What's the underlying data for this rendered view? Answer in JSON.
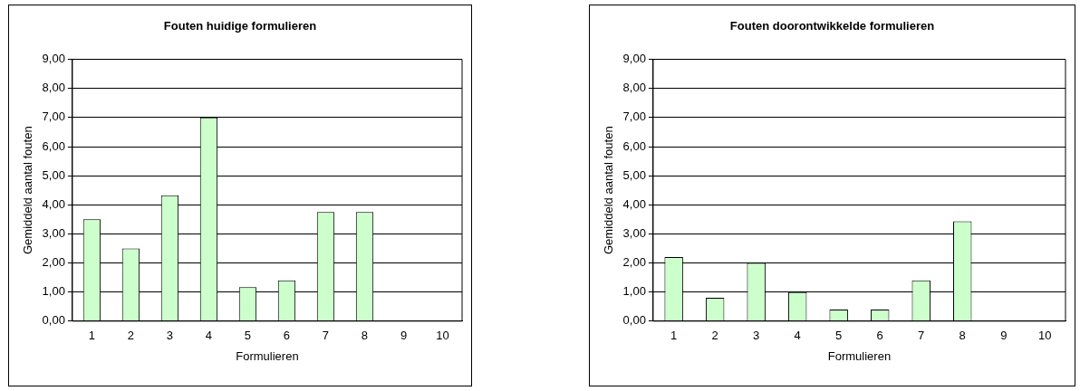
{
  "chart_data": [
    {
      "type": "bar",
      "title": "Fouten huidige formulieren",
      "xlabel": "Formulieren",
      "ylabel": "Gemiddeld aantal fouten",
      "categories": [
        "1",
        "2",
        "3",
        "4",
        "5",
        "6",
        "7",
        "8",
        "9",
        "10"
      ],
      "values": [
        3.5,
        2.5,
        4.33,
        7.0,
        1.17,
        1.4,
        3.75,
        3.75,
        null,
        null
      ],
      "color": "#ccffcc",
      "ylim": [
        0,
        9
      ],
      "yticks": [
        {
          "value": 0,
          "label": "0,00"
        },
        {
          "value": 1,
          "label": "1,00"
        },
        {
          "value": 2,
          "label": "2,00"
        },
        {
          "value": 3,
          "label": "3,00"
        },
        {
          "value": 4,
          "label": "4,00"
        },
        {
          "value": 5,
          "label": "5,00"
        },
        {
          "value": 6,
          "label": "6,00"
        },
        {
          "value": 7,
          "label": "7,00"
        },
        {
          "value": 8,
          "label": "8,00"
        },
        {
          "value": 9,
          "label": "9,00"
        }
      ],
      "grid": "y",
      "legend": false
    },
    {
      "type": "bar",
      "title": "Fouten doorontwikkelde formulieren",
      "xlabel": "Formulieren",
      "ylabel": "Gemiddeld aantal fouten",
      "categories": [
        "1",
        "2",
        "3",
        "4",
        "5",
        "6",
        "7",
        "8",
        "9",
        "10"
      ],
      "values": [
        2.2,
        0.8,
        2.0,
        1.0,
        0.4,
        0.4,
        1.4,
        3.43,
        null,
        null
      ],
      "color": "#ccffcc",
      "ylim": [
        0,
        9
      ],
      "yticks": [
        {
          "value": 0,
          "label": "0,00"
        },
        {
          "value": 1,
          "label": "1,00"
        },
        {
          "value": 2,
          "label": "2,00"
        },
        {
          "value": 3,
          "label": "3,00"
        },
        {
          "value": 4,
          "label": "4,00"
        },
        {
          "value": 5,
          "label": "5,00"
        },
        {
          "value": 6,
          "label": "6,00"
        },
        {
          "value": 7,
          "label": "7,00"
        },
        {
          "value": 8,
          "label": "8,00"
        },
        {
          "value": 9,
          "label": "9,00"
        }
      ],
      "grid": "y",
      "legend": false
    }
  ]
}
